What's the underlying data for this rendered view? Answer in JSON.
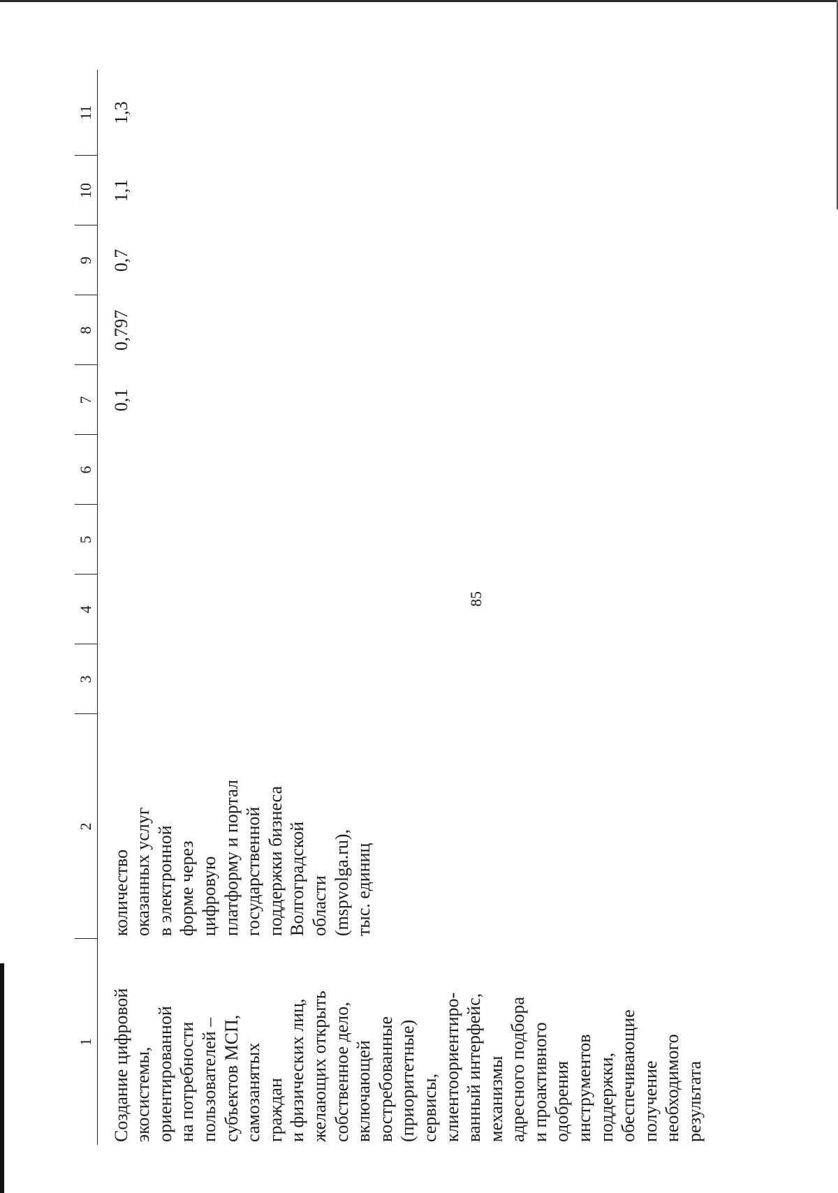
{
  "page_number": "85",
  "table": {
    "headers": [
      "1",
      "2",
      "3",
      "4",
      "5",
      "6",
      "7",
      "8",
      "9",
      "10",
      "11"
    ],
    "row": {
      "col1_lines": [
        "Создание цифровой",
        "экосистемы,",
        "ориентированной",
        "на потребности",
        "пользователей –",
        "субъектов МСП,",
        "самозанятых",
        "граждан",
        "и физических лиц,",
        "желающих открыть",
        "собственное дело,",
        "включающей",
        "востребованные",
        "(приоритетные)",
        "сервисы,",
        "клиентоориентиро-",
        "ванный интерфейс,",
        "механизмы",
        "адресного подбора",
        "и проактивного",
        "одобрения",
        "инструментов",
        "поддержки,",
        "обеспечивающие",
        "получение",
        "необходимого",
        "результата"
      ],
      "col2_lines": [
        "количество",
        "оказанных услуг",
        "в электронной",
        "форме через",
        "цифровую",
        "платформу и портал",
        "государственной",
        "поддержки бизнеса",
        "Волгоградской",
        "области",
        "(mspvolga.ru),",
        "тыс. единиц"
      ],
      "col3": "",
      "col4": "",
      "col5": "",
      "col6": "",
      "col7": "0,1",
      "col8": "0,797",
      "col9": "0,7",
      "col10": "1,1",
      "col11": "1,3"
    }
  }
}
